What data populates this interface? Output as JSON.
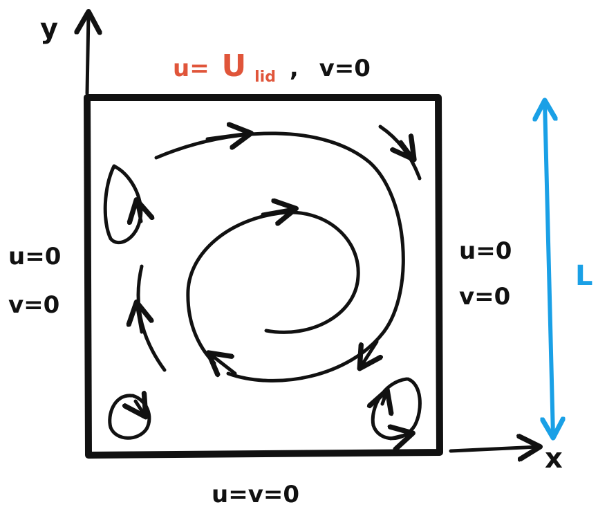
{
  "colors": {
    "ink": "#111111",
    "lid_velocity": "#e0553a",
    "length_marker": "#1aa0e6"
  },
  "axes": {
    "x_label": "x",
    "y_label": "y"
  },
  "top_boundary": {
    "u_prefix": "u=",
    "u_main": "U",
    "u_subscript": "lid",
    "separator": ",",
    "v_condition": "v=0"
  },
  "left_boundary": {
    "u_condition": "u=0",
    "v_condition": "v=0"
  },
  "right_boundary": {
    "u_condition": "u=0",
    "v_condition": "v=0"
  },
  "bottom_boundary": {
    "condition": "u=v=0"
  },
  "length_marker": {
    "label": "L"
  }
}
